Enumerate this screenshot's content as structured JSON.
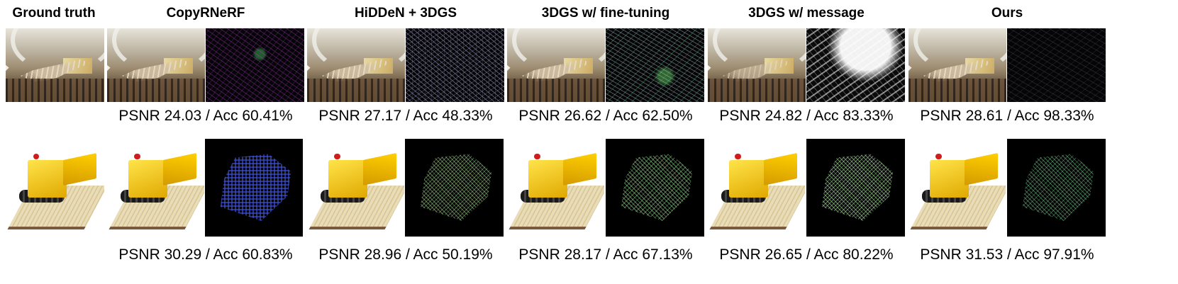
{
  "headers": {
    "ground_truth": "Ground truth",
    "copyrnerf": "CopyRNeRF",
    "hidden_3dgs": "HiDDeN + 3DGS",
    "ft_3dgs": "3DGS w/ fine-tuning",
    "msg_3dgs": "3DGS w/ message",
    "ours": "Ours"
  },
  "row1_captions": {
    "copyrnerf": "PSNR 24.03 / Acc 60.41%",
    "hidden_3dgs": "PSNR 27.17 / Acc 48.33%",
    "ft_3dgs": "PSNR 26.62 / Acc 62.50%",
    "msg_3dgs": "PSNR 24.82 / Acc 83.33%",
    "ours": "PSNR 28.61 / Acc 98.33%"
  },
  "row2_captions": {
    "copyrnerf": "PSNR 30.29 / Acc 60.83%",
    "hidden_3dgs": "PSNR 28.96 / Acc 50.19%",
    "ft_3dgs": "PSNR 28.17 / Acc 67.13%",
    "msg_3dgs": "PSNR 26.65 / Acc 80.22%",
    "ours": "PSNR 31.53 / Acc 97.91%"
  }
}
